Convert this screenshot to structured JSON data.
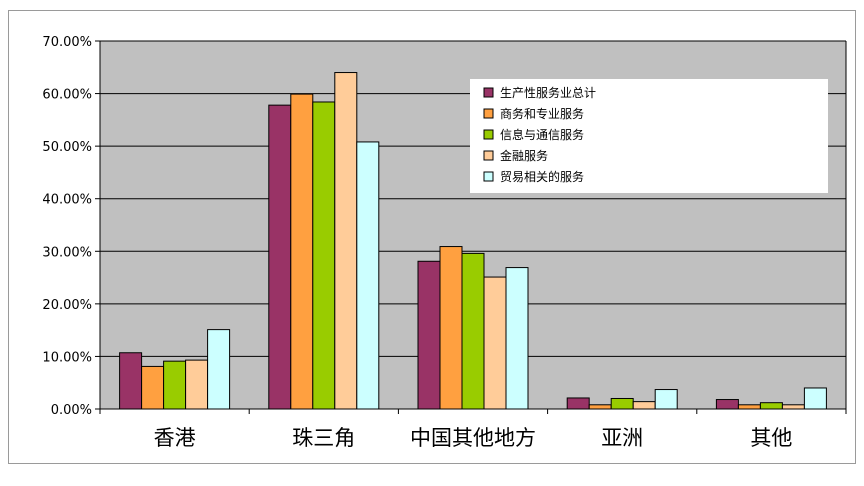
{
  "chart_data": {
    "type": "bar",
    "categories": [
      "香港",
      "珠三角",
      "中国其他地方",
      "亚洲",
      "其他"
    ],
    "series": [
      {
        "name": "生产性服务业总计",
        "color": "#993366",
        "values": [
          0.107,
          0.578,
          0.281,
          0.021,
          0.018
        ]
      },
      {
        "name": "商务和专业服务",
        "color": "#ffa040",
        "values": [
          0.081,
          0.599,
          0.309,
          0.008,
          0.008
        ]
      },
      {
        "name": "信息与通信服务",
        "color": "#99cc00",
        "values": [
          0.091,
          0.584,
          0.296,
          0.02,
          0.012
        ]
      },
      {
        "name": "金融服务",
        "color": "#ffcc99",
        "values": [
          0.093,
          0.64,
          0.251,
          0.014,
          0.008
        ]
      },
      {
        "name": "贸易相关的服务",
        "color": "#ccffff",
        "values": [
          0.151,
          0.508,
          0.269,
          0.037,
          0.04
        ]
      }
    ],
    "yticks": [
      "0.00%",
      "10.00%",
      "20.00%",
      "30.00%",
      "40.00%",
      "50.00%",
      "60.00%",
      "70.00%"
    ],
    "ylim": [
      0,
      0.7
    ],
    "plot_background": "#c0c0c0",
    "grid": true,
    "legend_position": "top-right"
  }
}
